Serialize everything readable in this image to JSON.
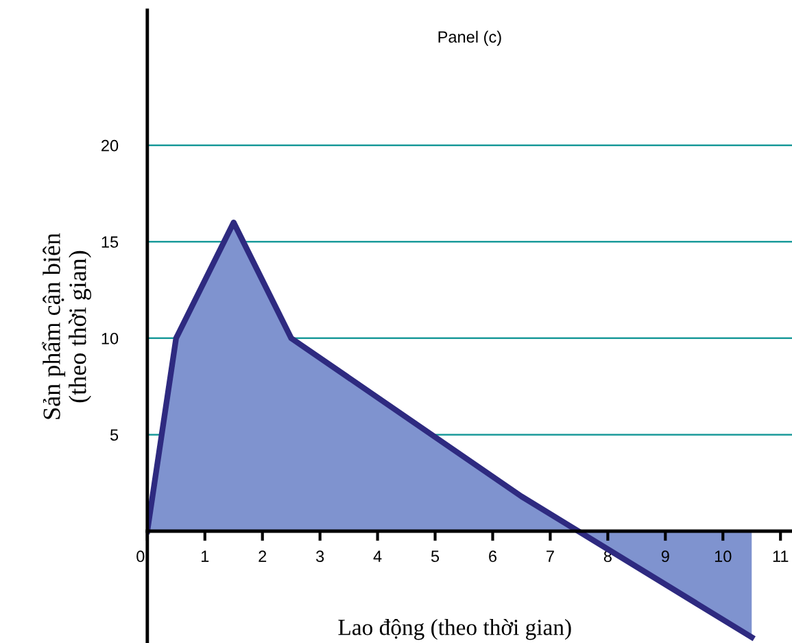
{
  "chart_data": {
    "type": "area",
    "title": "Panel (c)",
    "xlabel": "Lao động (theo thời gian)",
    "ylabel": "Sản phẩm cận biên\n(theo thời gian)",
    "x": [
      0,
      0.5,
      1.5,
      2.5,
      6.5,
      10.5
    ],
    "series": [
      {
        "color": "#2e2a80",
        "values": [
          0,
          10,
          16,
          10,
          1.8,
          -5.5
        ]
      }
    ],
    "xlim": [
      0,
      11.2
    ],
    "ylim": [
      -5.8,
      27
    ],
    "xticks": [
      0,
      1,
      2,
      3,
      4,
      5,
      6,
      7,
      8,
      9,
      10,
      11
    ],
    "yticks": [
      5,
      10,
      15,
      20
    ],
    "grid": "y"
  }
}
